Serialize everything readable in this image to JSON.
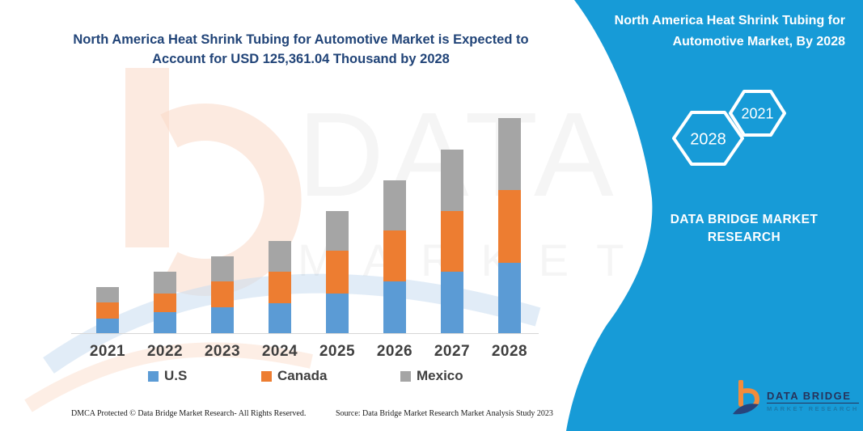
{
  "title": {
    "line1": "North America Heat Shrink Tubing for Automotive Market is Expected to",
    "line2": "Account for USD 125,361.04 Thousand by 2028"
  },
  "panel": {
    "title": "North America Heat Shrink Tubing for Automotive Market, By 2028",
    "accent_color": "#179BD7",
    "hexagons": {
      "back_year": "2028",
      "front_year": "2021"
    },
    "brand": {
      "line1": "DATA BRIDGE MARKET",
      "line2": "RESEARCH"
    }
  },
  "watermark": {
    "text": "DATA BRIDGE",
    "subtext": "MARKET RESEARCH"
  },
  "logo": {
    "name": "DATA BRIDGE",
    "subtitle": "MARKET RESEARCH"
  },
  "footer": {
    "left": "DMCA Protected © Data Bridge Market Research-  All Rights Reserved.",
    "right": "Source: Data Bridge Market Research  Market Analysis Study 2023"
  },
  "chart_data": {
    "type": "bar",
    "stacked": true,
    "title": "North America Heat Shrink Tubing for Automotive Market is Expected to Account for USD 125,361.04 Thousand by 2028",
    "unit": "USD Thousand",
    "categories": [
      "2021",
      "2022",
      "2023",
      "2024",
      "2025",
      "2026",
      "2027",
      "2028"
    ],
    "series": [
      {
        "name": "U.S",
        "color": "#5B9BD5",
        "values": [
          8690,
          12150,
          14950,
          17430,
          23030,
          30370,
          35970,
          41260
        ]
      },
      {
        "name": "Canada",
        "color": "#ED7D31",
        "values": [
          9340,
          10890,
          15420,
          18550,
          24900,
          29760,
          35180,
          42040
        ]
      },
      {
        "name": "Mexico",
        "color": "#A5A5A5",
        "values": [
          8740,
          12940,
          14480,
          17890,
          23360,
          28970,
          35970,
          42061.04
        ]
      }
    ],
    "totals": [
      26770,
      35980,
      44850,
      53870,
      71290,
      89100,
      107120,
      125361.04
    ],
    "ylim": [
      0,
      130000
    ],
    "grid": false,
    "legend_position": "bottom",
    "xlabel": "",
    "ylabel": ""
  }
}
